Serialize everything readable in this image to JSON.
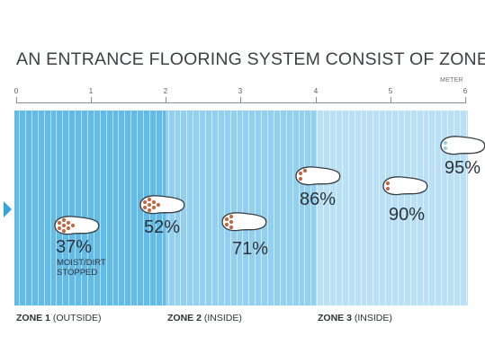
{
  "title": "AN ENTRANCE FLOORING SYSTEM CONSIST OF ZONES",
  "scale": {
    "unit": "METER",
    "ticks": [
      "0",
      "1",
      "2",
      "3",
      "4",
      "5",
      "6"
    ]
  },
  "colors": {
    "zone1": "#63bbe8",
    "zone2": "#93cfee",
    "zone3": "#b9e0f5",
    "arrow": "#33a6de",
    "dirt": "#c4673f"
  },
  "steps": [
    {
      "percent": "37%",
      "note_line1": "MOIST/DIRT",
      "note_line2": "STOPPED",
      "dirt_level": 0.37
    },
    {
      "percent": "52%",
      "dirt_level": 0.52
    },
    {
      "percent": "71%",
      "dirt_level": 0.71
    },
    {
      "percent": "86%",
      "dirt_level": 0.86
    },
    {
      "percent": "90%",
      "dirt_level": 0.9
    },
    {
      "percent": "95%",
      "dirt_level": 0.95
    }
  ],
  "zones": [
    {
      "name": "ZONE 1",
      "desc": "(OUTSIDE)"
    },
    {
      "name": "ZONE 2",
      "desc": "(INSIDE)"
    },
    {
      "name": "ZONE 3",
      "desc": "(INSIDE)"
    }
  ]
}
